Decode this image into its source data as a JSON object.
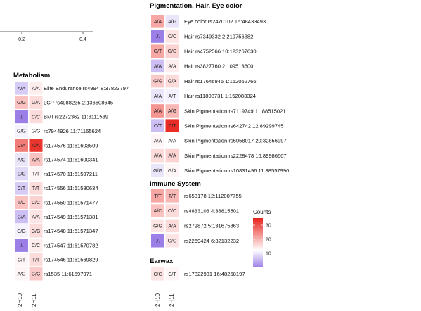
{
  "chart_data": {
    "type": "heatmap",
    "columns": [
      "2H10",
      "2H11"
    ],
    "scatter_axis": {
      "ticks": [
        "0.2",
        "0.4"
      ]
    },
    "legend": {
      "title": "Counts",
      "ticks": [
        10,
        20,
        30
      ],
      "color_min": "#9b7fe6",
      "color_mid": "#ffffff",
      "color_max": "#e8231c",
      "range": [
        0,
        35
      ]
    },
    "panels": [
      {
        "title": "Metabolism",
        "rows": [
          {
            "label": "Elite Endurance rs4994 8:37823797",
            "cells": [
              {
                "text": "A/A",
                "count": 6
              },
              {
                "text": "A/A",
                "count": 12
              }
            ]
          },
          {
            "label": "LCP rs4988235 2:136608645",
            "cells": [
              {
                "text": "G/G",
                "count": 17
              },
              {
                "text": "G/A",
                "count": 14
              }
            ]
          },
          {
            "label": "BMI rs2272362 11:8111539",
            "cells": [
              {
                "text": "./.",
                "count": 0
              },
              {
                "text": "C/C",
                "count": 14
              }
            ]
          },
          {
            "label": "rs7944926 11:71165624",
            "cells": [
              {
                "text": "G/G",
                "count": 9
              },
              {
                "text": "G/G",
                "count": 10
              }
            ]
          },
          {
            "label": "rs174576 11:61603509",
            "cells": [
              {
                "text": "C/A",
                "count": 25
              },
              {
                "text": "A/A",
                "count": 33
              }
            ]
          },
          {
            "label": "rs174574 11:61600341",
            "cells": [
              {
                "text": "A/C",
                "count": 8
              },
              {
                "text": "A/A",
                "count": 17
              }
            ]
          },
          {
            "label": "rs174570 11:61597211",
            "cells": [
              {
                "text": "C/C",
                "count": 7
              },
              {
                "text": "T/T",
                "count": 11
              }
            ]
          },
          {
            "label": "rs174556 11:61580634",
            "cells": [
              {
                "text": "C/T",
                "count": 6
              },
              {
                "text": "T/T",
                "count": 14
              }
            ]
          },
          {
            "label": "rs174550 11:61571477",
            "cells": [
              {
                "text": "T/C",
                "count": 17
              },
              {
                "text": "C/C",
                "count": 15
              }
            ]
          },
          {
            "label": "rs174549 11:61571381",
            "cells": [
              {
                "text": "G/A",
                "count": 5
              },
              {
                "text": "A/A",
                "count": 13
              }
            ]
          },
          {
            "label": "rs174548 11:61571347",
            "cells": [
              {
                "text": "C/G",
                "count": 9
              },
              {
                "text": "G/G",
                "count": 14
              }
            ]
          },
          {
            "label": "rs174547 11:61570782",
            "cells": [
              {
                "text": "./.",
                "count": 0
              },
              {
                "text": "C/C",
                "count": 12
              }
            ]
          },
          {
            "label": "rs174546 11:61569829",
            "cells": [
              {
                "text": "C/T",
                "count": 11
              },
              {
                "text": "T/T",
                "count": 14
              }
            ]
          },
          {
            "label": "rs1535 11:61597971",
            "cells": [
              {
                "text": "A/G",
                "count": 11
              },
              {
                "text": "G/G",
                "count": 16
              }
            ]
          }
        ]
      },
      {
        "title": "Pigmentation, Hair, Eye color",
        "rows": [
          {
            "label": "Eye color rs2470102 15:48433493",
            "cells": [
              {
                "text": "A/A",
                "count": 20
              },
              {
                "text": "A/G",
                "count": 8
              }
            ]
          },
          {
            "label": "Hair rs7349332 2:219756382",
            "cells": [
              {
                "text": "./.",
                "count": 0
              },
              {
                "text": "C/C",
                "count": 13
              }
            ]
          },
          {
            "label": "Hair rs4752566 10:123267630",
            "cells": [
              {
                "text": "G/T",
                "count": 20
              },
              {
                "text": "G/G",
                "count": 15
              }
            ]
          },
          {
            "label": "Hair rs3827760 2:109513600",
            "cells": [
              {
                "text": "A/A",
                "count": 5
              },
              {
                "text": "A/A",
                "count": 12
              }
            ]
          },
          {
            "label": "Hair rs17646946 1:152062766",
            "cells": [
              {
                "text": "G/G",
                "count": 16
              },
              {
                "text": "G/A",
                "count": 14
              }
            ]
          },
          {
            "label": "Hair rs11803731 1:152083324",
            "cells": [
              {
                "text": "A/A",
                "count": 8
              },
              {
                "text": "A/T",
                "count": 9
              }
            ]
          },
          {
            "label": "Skin Pigmentation rs7119749 11:88515021",
            "cells": [
              {
                "text": "A/A",
                "count": 22
              },
              {
                "text": "A/G",
                "count": 18
              }
            ]
          },
          {
            "label": "Skin Pigmentation rs642742 12:89299745",
            "cells": [
              {
                "text": "C/T",
                "count": 5
              },
              {
                "text": "C/T",
                "count": 34
              }
            ]
          },
          {
            "label": "Skin Pigmentation rs6058017 20:32856997",
            "cells": [
              {
                "text": "A/A",
                "count": 11
              },
              {
                "text": "A/A",
                "count": 10
              }
            ]
          },
          {
            "label": "Skin Pigmentation rs2228478 16:89986607",
            "cells": [
              {
                "text": "A/A",
                "count": 14
              },
              {
                "text": "A/A",
                "count": 15
              }
            ]
          },
          {
            "label": "Skin Pigmentation rs10831496 11:88557990",
            "cells": [
              {
                "text": "G/G",
                "count": 8
              },
              {
                "text": "G/A",
                "count": 11
              }
            ]
          }
        ]
      },
      {
        "title": "Immune System",
        "rows": [
          {
            "label": "rs653178 12:112007755",
            "cells": [
              {
                "text": "T/T",
                "count": 20
              },
              {
                "text": "T/T",
                "count": 18
              }
            ]
          },
          {
            "label": "rs4833103 4:38815501",
            "cells": [
              {
                "text": "A/C",
                "count": 17
              },
              {
                "text": "C/C",
                "count": 14
              }
            ]
          },
          {
            "label": "rs272872 5:131675863",
            "cells": [
              {
                "text": "G/G",
                "count": 13
              },
              {
                "text": "A/A",
                "count": 14
              }
            ]
          },
          {
            "label": "rs2269424 6:32132232",
            "cells": [
              {
                "text": "./.",
                "count": 0
              },
              {
                "text": "G/G",
                "count": 13
              }
            ]
          }
        ]
      },
      {
        "title": "Earwax",
        "rows": [
          {
            "label": "rs17822931 16:48258197",
            "cells": [
              {
                "text": "C/C",
                "count": 13
              },
              {
                "text": "C/T",
                "count": 11
              }
            ]
          }
        ]
      }
    ]
  }
}
